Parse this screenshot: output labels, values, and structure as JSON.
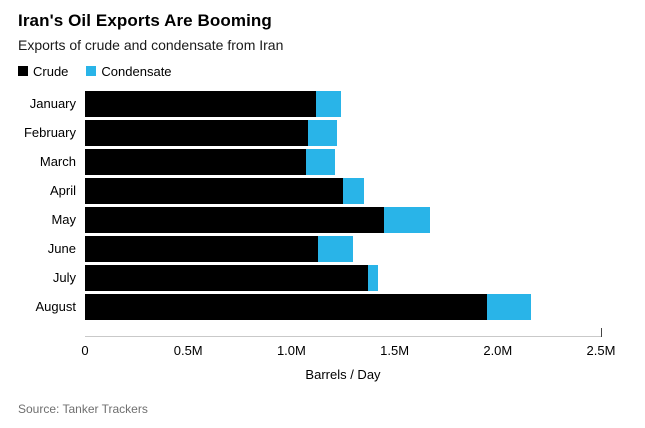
{
  "header": {
    "title": "Iran's Oil Exports Are Booming",
    "subtitle": "Exports of crude and condensate from Iran"
  },
  "source": "Source: Tanker Trackers",
  "chart_data": {
    "type": "bar",
    "orientation": "horizontal",
    "stacked": true,
    "title": "Iran's Oil Exports Are Booming",
    "subtitle": "Exports of crude and condensate from Iran",
    "categories": [
      "January",
      "February",
      "March",
      "April",
      "May",
      "June",
      "July",
      "August"
    ],
    "series": [
      {
        "name": "Crude",
        "color": "#000000",
        "values": [
          1.12,
          1.08,
          1.07,
          1.25,
          1.45,
          1.13,
          1.37,
          1.95
        ]
      },
      {
        "name": "Condensate",
        "color": "#29b4e8",
        "values": [
          0.12,
          0.14,
          0.14,
          0.1,
          0.22,
          0.17,
          0.05,
          0.21
        ]
      }
    ],
    "xlabel": "Barrels / Day",
    "ylabel": "",
    "xlim": [
      0,
      2.5
    ],
    "xticks": [
      0,
      0.5,
      1.0,
      1.5,
      2.0,
      2.5
    ],
    "xtick_labels": [
      "0",
      "0.5M",
      "1.0M",
      "1.5M",
      "2.0M",
      "2.5M"
    ],
    "legend_position": "top-left",
    "grid": false
  }
}
